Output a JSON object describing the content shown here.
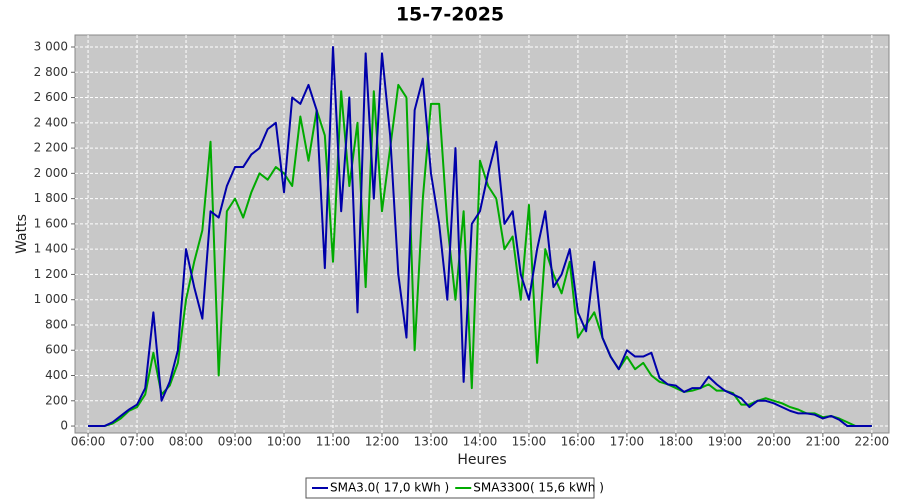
{
  "chart_data": {
    "type": "line",
    "title": "15-7-2025",
    "xlabel": "Heures",
    "ylabel": "Watts",
    "x": [
      360,
      370,
      380,
      390,
      400,
      410,
      420,
      430,
      440,
      450,
      460,
      470,
      480,
      490,
      500,
      510,
      520,
      530,
      540,
      550,
      560,
      570,
      580,
      590,
      600,
      610,
      620,
      630,
      640,
      650,
      660,
      670,
      680,
      690,
      700,
      710,
      720,
      730,
      740,
      750,
      760,
      770,
      780,
      790,
      800,
      810,
      820,
      830,
      840,
      850,
      860,
      870,
      880,
      890,
      900,
      910,
      920,
      930,
      940,
      950,
      960,
      970,
      980,
      990,
      1000,
      1010,
      1020,
      1030,
      1040,
      1050,
      1060,
      1070,
      1080,
      1090,
      1100,
      1110,
      1120,
      1130,
      1140,
      1150,
      1160,
      1170,
      1180,
      1190,
      1200,
      1210,
      1220,
      1230,
      1240,
      1250,
      1260,
      1270,
      1280,
      1290,
      1300,
      1310,
      1320
    ],
    "series": [
      {
        "name": "SMA3.0( 17,0 kWh )",
        "color": "#0000aa",
        "values": [
          0,
          0,
          0,
          30,
          80,
          130,
          170,
          300,
          900,
          200,
          350,
          600,
          1400,
          1100,
          850,
          1700,
          1650,
          1900,
          2050,
          2050,
          2150,
          2200,
          2350,
          2400,
          1850,
          2600,
          2550,
          2700,
          2500,
          1250,
          3000,
          1700,
          2600,
          900,
          2950,
          1800,
          2950,
          2300,
          1200,
          700,
          2500,
          2750,
          2000,
          1600,
          1000,
          2200,
          350,
          1600,
          1700,
          2000,
          2250,
          1600,
          1700,
          1200,
          1000,
          1400,
          1700,
          1100,
          1200,
          1400,
          900,
          750,
          1300,
          700,
          550,
          450,
          600,
          550,
          550,
          580,
          380,
          330,
          320,
          270,
          300,
          300,
          390,
          330,
          280,
          250,
          220,
          150,
          200,
          200,
          180,
          150,
          120,
          100,
          100,
          90,
          60,
          80,
          50,
          0,
          0,
          0,
          0
        ]
      },
      {
        "name": "SMA3300( 15,6 kWh )",
        "color": "#00aa00",
        "values": [
          0,
          0,
          0,
          20,
          60,
          120,
          150,
          250,
          580,
          250,
          320,
          500,
          1000,
          1300,
          1550,
          2250,
          400,
          1700,
          1800,
          1650,
          1850,
          2000,
          1950,
          2050,
          2000,
          1900,
          2450,
          2100,
          2500,
          2300,
          1300,
          2650,
          1900,
          2400,
          1100,
          2650,
          1700,
          2200,
          2700,
          2600,
          600,
          1800,
          2550,
          2550,
          1600,
          1000,
          1700,
          300,
          2100,
          1900,
          1800,
          1400,
          1500,
          1000,
          1750,
          500,
          1400,
          1200,
          1050,
          1300,
          700,
          800,
          900,
          700,
          550,
          450,
          550,
          450,
          500,
          400,
          350,
          330,
          300,
          270,
          280,
          300,
          330,
          280,
          280,
          260,
          170,
          170,
          200,
          220,
          200,
          180,
          150,
          130,
          100,
          100,
          70,
          80,
          60,
          30,
          0,
          0,
          0
        ]
      }
    ],
    "xlim": [
      344,
      1341
    ],
    "xticks": [
      {
        "value": 360,
        "label": "06:00"
      },
      {
        "value": 420,
        "label": "07:00"
      },
      {
        "value": 480,
        "label": "08:00"
      },
      {
        "value": 540,
        "label": "09:00"
      },
      {
        "value": 600,
        "label": "10:00"
      },
      {
        "value": 660,
        "label": "11:00"
      },
      {
        "value": 720,
        "label": "12:00"
      },
      {
        "value": 780,
        "label": "13:00"
      },
      {
        "value": 840,
        "label": "14:00"
      },
      {
        "value": 900,
        "label": "15:00"
      },
      {
        "value": 960,
        "label": "16:00"
      },
      {
        "value": 1020,
        "label": "17:00"
      },
      {
        "value": 1080,
        "label": "18:00"
      },
      {
        "value": 1140,
        "label": "19:00"
      },
      {
        "value": 1200,
        "label": "20:00"
      },
      {
        "value": 1260,
        "label": "21:00"
      },
      {
        "value": 1320,
        "label": "22:00"
      }
    ],
    "ylim": [
      -55,
      3095
    ],
    "yticks": [
      0,
      200,
      400,
      600,
      800,
      {
        "value": 1000,
        "label": "1 000"
      },
      {
        "value": 1200,
        "label": "1 200"
      },
      {
        "value": 1400,
        "label": "1 400"
      },
      {
        "value": 1600,
        "label": "1 600"
      },
      {
        "value": 1800,
        "label": "1 800"
      },
      {
        "value": 2000,
        "label": "2 000"
      },
      {
        "value": 2200,
        "label": "2 200"
      },
      {
        "value": 2400,
        "label": "2 400"
      },
      {
        "value": 2600,
        "label": "2 600"
      },
      {
        "value": 2800,
        "label": "2 800"
      },
      {
        "value": 3000,
        "label": "3 000"
      }
    ],
    "grid": true
  }
}
